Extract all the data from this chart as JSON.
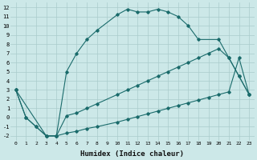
{
  "xlabel": "Humidex (Indice chaleur)",
  "background_color": "#cce8e8",
  "grid_color": "#aacccc",
  "line_color": "#1a6b6b",
  "xlim": [
    -0.5,
    23.5
  ],
  "ylim": [
    -2.5,
    12.5
  ],
  "xticks": [
    0,
    1,
    2,
    3,
    4,
    5,
    6,
    7,
    8,
    9,
    10,
    11,
    12,
    13,
    14,
    15,
    16,
    17,
    18,
    19,
    20,
    21,
    22,
    23
  ],
  "yticks": [
    -2,
    -1,
    0,
    1,
    2,
    3,
    4,
    5,
    6,
    7,
    8,
    9,
    10,
    11,
    12
  ],
  "line1_x": [
    0,
    1,
    2,
    3,
    4,
    5,
    6,
    7,
    8,
    10,
    11,
    12,
    13,
    14,
    15,
    16,
    17,
    18,
    20,
    21,
    22,
    23
  ],
  "line1_y": [
    3,
    0,
    -1,
    -2,
    -2,
    5,
    7,
    8.5,
    9.5,
    11.2,
    11.8,
    11.5,
    11.5,
    11.8,
    11.5,
    11,
    10,
    8.5,
    8.5,
    6.5,
    4.5,
    2.5
  ],
  "line2_x": [
    0,
    3,
    4,
    5,
    6,
    7,
    8,
    10,
    11,
    12,
    13,
    14,
    15,
    16,
    17,
    18,
    19,
    20,
    21,
    22,
    23
  ],
  "line2_y": [
    3,
    -2,
    -2,
    0.2,
    0.5,
    1,
    1.5,
    2.5,
    3,
    3.5,
    4,
    4.5,
    5,
    5.5,
    6,
    6.5,
    7,
    7.5,
    6.5,
    4.5,
    2.5
  ],
  "line3_x": [
    0,
    1,
    2,
    3,
    4,
    5,
    6,
    7,
    8,
    10,
    11,
    12,
    13,
    14,
    15,
    16,
    17,
    18,
    19,
    20,
    21,
    22,
    23
  ],
  "line3_y": [
    3,
    0,
    -1,
    -2,
    -2,
    -1.7,
    -1.5,
    -1.2,
    -1.0,
    -0.5,
    -0.2,
    0.1,
    0.4,
    0.7,
    1.0,
    1.3,
    1.6,
    1.9,
    2.2,
    2.5,
    2.8,
    6.5,
    2.5
  ]
}
